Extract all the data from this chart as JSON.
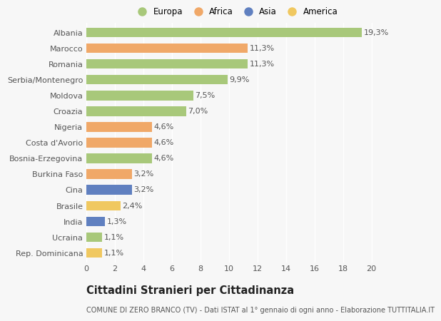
{
  "categories": [
    "Albania",
    "Marocco",
    "Romania",
    "Serbia/Montenegro",
    "Moldova",
    "Croazia",
    "Nigeria",
    "Costa d'Avorio",
    "Bosnia-Erzegovina",
    "Burkina Faso",
    "Cina",
    "Brasile",
    "India",
    "Ucraina",
    "Rep. Dominicana"
  ],
  "values": [
    19.3,
    11.3,
    11.3,
    9.9,
    7.5,
    7.0,
    4.6,
    4.6,
    4.6,
    3.2,
    3.2,
    2.4,
    1.3,
    1.1,
    1.1
  ],
  "labels": [
    "19,3%",
    "11,3%",
    "11,3%",
    "9,9%",
    "7,5%",
    "7,0%",
    "4,6%",
    "4,6%",
    "4,6%",
    "3,2%",
    "3,2%",
    "2,4%",
    "1,3%",
    "1,1%",
    "1,1%"
  ],
  "continents": [
    "Europa",
    "Africa",
    "Europa",
    "Europa",
    "Europa",
    "Europa",
    "Africa",
    "Africa",
    "Europa",
    "Africa",
    "Asia",
    "America",
    "Asia",
    "Europa",
    "America"
  ],
  "continent_colors": {
    "Europa": "#a8c87a",
    "Africa": "#f0a868",
    "Asia": "#6080c0",
    "America": "#f0c860"
  },
  "legend_entries": [
    "Europa",
    "Africa",
    "Asia",
    "America"
  ],
  "legend_colors": [
    "#a8c87a",
    "#f0a868",
    "#6080c0",
    "#f0c860"
  ],
  "background_color": "#f7f7f7",
  "title": "Cittadini Stranieri per Cittadinanza",
  "subtitle": "COMUNE DI ZERO BRANCO (TV) - Dati ISTAT al 1° gennaio di ogni anno - Elaborazione TUTTITALIA.IT",
  "xlim": [
    0,
    21
  ],
  "xticks": [
    0,
    2,
    4,
    6,
    8,
    10,
    12,
    14,
    16,
    18,
    20
  ],
  "bar_height": 0.62,
  "grid_color": "#ffffff",
  "label_fontsize": 8.0,
  "tick_fontsize": 8.0,
  "title_fontsize": 10.5,
  "subtitle_fontsize": 7.0
}
